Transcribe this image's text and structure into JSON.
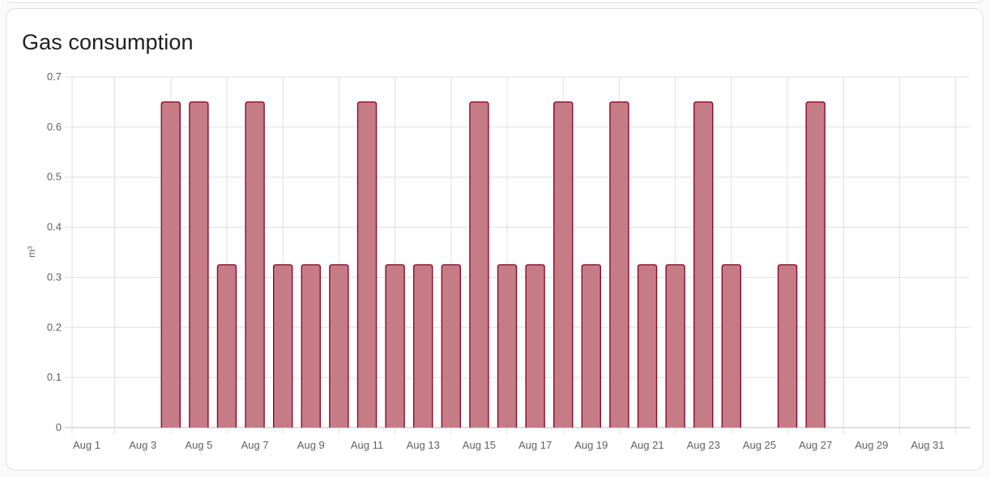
{
  "card": {
    "title": "Gas consumption"
  },
  "colors": {
    "bar_fill": "#c67c87",
    "bar_stroke": "#8b0a24",
    "grid": "#e0e0e0",
    "axis": "#bdbdbd"
  },
  "chart_data": {
    "type": "bar",
    "title": "Gas consumption",
    "xlabel": "",
    "ylabel": "m³",
    "ylim": [
      0,
      0.7
    ],
    "yticks": [
      "0",
      "0.1",
      "0.2",
      "0.3",
      "0.4",
      "0.5",
      "0.6",
      "0.7"
    ],
    "xtick_labels": [
      "Aug 1",
      "Aug 3",
      "Aug 5",
      "Aug 7",
      "Aug 9",
      "Aug 11",
      "Aug 13",
      "Aug 15",
      "Aug 17",
      "Aug 19",
      "Aug 21",
      "Aug 23",
      "Aug 25",
      "Aug 27",
      "Aug 29",
      "Aug 31"
    ],
    "grid": true,
    "legend": "none",
    "categories": [
      "Aug 1",
      "Aug 2",
      "Aug 3",
      "Aug 4",
      "Aug 5",
      "Aug 6",
      "Aug 7",
      "Aug 8",
      "Aug 9",
      "Aug 10",
      "Aug 11",
      "Aug 12",
      "Aug 13",
      "Aug 14",
      "Aug 15",
      "Aug 16",
      "Aug 17",
      "Aug 18",
      "Aug 19",
      "Aug 20",
      "Aug 21",
      "Aug 22",
      "Aug 23",
      "Aug 24",
      "Aug 25",
      "Aug 26",
      "Aug 27",
      "Aug 28",
      "Aug 29",
      "Aug 30",
      "Aug 31"
    ],
    "values": [
      0,
      0,
      0,
      0.65,
      0.65,
      0.325,
      0.65,
      0.325,
      0.325,
      0.325,
      0.65,
      0.325,
      0.325,
      0.325,
      0.65,
      0.325,
      0.325,
      0.65,
      0.325,
      0.65,
      0.325,
      0.325,
      0.65,
      0.325,
      0,
      0.325,
      0.65,
      0,
      0,
      0,
      0
    ]
  }
}
